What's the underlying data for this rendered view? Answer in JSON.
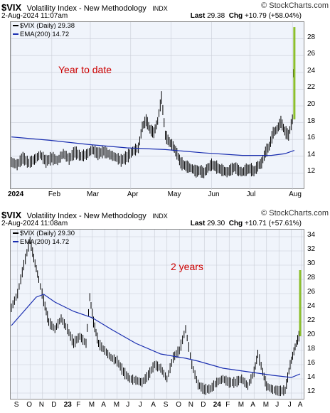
{
  "chart_data": [
    {
      "type": "bar",
      "subtype": "ohlc",
      "symbol": "$VIX",
      "title": "Volatility Index - New Methodology",
      "exchange": "INDX",
      "brand": "© StockCharts.com",
      "date": "2-Aug-2024 11:07am",
      "last_label": "Last",
      "last": "29.38",
      "chg_label": "Chg",
      "chg": "+10.79 (+58.04%)",
      "legend_price": "$VIX (Daily) 29.38",
      "legend_ema": "EMA(200) 14.72",
      "annotation": "Year to date",
      "ylim": [
        10,
        30
      ],
      "yticks": [
        12,
        14,
        16,
        18,
        20,
        22,
        24,
        26,
        28
      ],
      "xlim": [
        0,
        150
      ],
      "xticks": [
        {
          "label": "2024",
          "x": 0,
          "bold": true
        },
        {
          "label": "Feb",
          "x": 21
        },
        {
          "label": "Mar",
          "x": 41
        },
        {
          "label": "Apr",
          "x": 62
        },
        {
          "label": "May",
          "x": 83
        },
        {
          "label": "Jun",
          "x": 104
        },
        {
          "label": "Jul",
          "x": 124
        },
        {
          "label": "Aug",
          "x": 146
        }
      ],
      "price": [
        [
          0,
          13.3
        ],
        [
          3,
          13.0
        ],
        [
          6,
          13.8
        ],
        [
          9,
          13.2
        ],
        [
          12,
          13.6
        ],
        [
          15,
          14.2
        ],
        [
          18,
          13.4
        ],
        [
          21,
          13.8
        ],
        [
          24,
          13.5
        ],
        [
          27,
          14.3
        ],
        [
          30,
          13.7
        ],
        [
          33,
          14.5
        ],
        [
          36,
          14.0
        ],
        [
          39,
          14.2
        ],
        [
          42,
          14.8
        ],
        [
          45,
          14.3
        ],
        [
          48,
          14.6
        ],
        [
          51,
          14.2
        ],
        [
          54,
          13.9
        ],
        [
          57,
          13.5
        ],
        [
          60,
          13.9
        ],
        [
          63,
          14.6
        ],
        [
          66,
          15.0
        ],
        [
          68,
          17.5
        ],
        [
          70,
          18.3
        ],
        [
          72,
          17.2
        ],
        [
          74,
          16.8
        ],
        [
          76,
          18.2
        ],
        [
          78,
          21.0
        ],
        [
          80,
          16.5
        ],
        [
          82,
          15.7
        ],
        [
          84,
          15.2
        ],
        [
          86,
          14.3
        ],
        [
          88,
          13.2
        ],
        [
          90,
          12.9
        ],
        [
          92,
          12.7
        ],
        [
          94,
          12.5
        ],
        [
          96,
          12.2
        ],
        [
          98,
          12.3
        ],
        [
          100,
          12.0
        ],
        [
          102,
          12.6
        ],
        [
          104,
          13.0
        ],
        [
          106,
          12.8
        ],
        [
          108,
          12.5
        ],
        [
          110,
          12.3
        ],
        [
          112,
          12.1
        ],
        [
          114,
          12.4
        ],
        [
          116,
          12.7
        ],
        [
          118,
          12.3
        ],
        [
          120,
          12.1
        ],
        [
          122,
          12.4
        ],
        [
          124,
          12.5
        ],
        [
          126,
          12.2
        ],
        [
          128,
          12.8
        ],
        [
          130,
          13.2
        ],
        [
          132,
          14.5
        ],
        [
          134,
          15.2
        ],
        [
          136,
          16.8
        ],
        [
          138,
          17.2
        ],
        [
          140,
          18.1
        ],
        [
          142,
          17.0
        ],
        [
          144,
          16.5
        ],
        [
          146,
          18.4
        ],
        [
          147,
          29.4
        ]
      ],
      "ema": [
        [
          0,
          16.3
        ],
        [
          20,
          15.9
        ],
        [
          40,
          15.4
        ],
        [
          60,
          15.0
        ],
        [
          80,
          14.8
        ],
        [
          100,
          14.4
        ],
        [
          120,
          14.1
        ],
        [
          135,
          14.1
        ],
        [
          142,
          14.3
        ],
        [
          147,
          14.7
        ]
      ]
    },
    {
      "type": "bar",
      "subtype": "ohlc",
      "symbol": "$VIX",
      "title": "Volatility Index - New Methodology",
      "exchange": "INDX",
      "brand": "© StockCharts.com",
      "date": "2-Aug-2024 11:08am",
      "last_label": "Last",
      "last": "29.30",
      "chg_label": "Chg",
      "chg": "+10.71 (+57.61%)",
      "legend_price": "$VIX (Daily) 29.30",
      "legend_ema": "EMA(200) 14.72",
      "annotation": "2 years",
      "ylim": [
        11,
        35
      ],
      "yticks": [
        12,
        14,
        16,
        18,
        20,
        22,
        24,
        26,
        28,
        30,
        32,
        34
      ],
      "xlim": [
        0,
        23.2
      ],
      "xticks": [
        {
          "label": "S",
          "x": 0.5
        },
        {
          "label": "O",
          "x": 1.5
        },
        {
          "label": "N",
          "x": 2.5
        },
        {
          "label": "D",
          "x": 3.5
        },
        {
          "label": "23",
          "x": 4.5,
          "bold": true
        },
        {
          "label": "F",
          "x": 5.5
        },
        {
          "label": "M",
          "x": 6.5
        },
        {
          "label": "A",
          "x": 7.5
        },
        {
          "label": "M",
          "x": 8.5
        },
        {
          "label": "J",
          "x": 9.5
        },
        {
          "label": "J",
          "x": 10.5
        },
        {
          "label": "A",
          "x": 11.5
        },
        {
          "label": "S",
          "x": 12.5
        },
        {
          "label": "O",
          "x": 13.5
        },
        {
          "label": "N",
          "x": 14.5
        },
        {
          "label": "D",
          "x": 15.5
        },
        {
          "label": "24",
          "x": 16.5,
          "bold": true
        },
        {
          "label": "F",
          "x": 17.5
        },
        {
          "label": "M",
          "x": 18.5
        },
        {
          "label": "A",
          "x": 19.5
        },
        {
          "label": "M",
          "x": 20.5
        },
        {
          "label": "J",
          "x": 21.5
        },
        {
          "label": "J",
          "x": 22.5
        },
        {
          "label": "A",
          "x": 23.3
        }
      ],
      "price": [
        [
          0,
          24
        ],
        [
          0.5,
          26
        ],
        [
          1.0,
          30
        ],
        [
          1.5,
          33.5
        ],
        [
          1.8,
          31
        ],
        [
          2.2,
          28
        ],
        [
          2.6,
          25
        ],
        [
          3.0,
          22
        ],
        [
          3.5,
          21
        ],
        [
          4.0,
          22.5
        ],
        [
          4.5,
          21
        ],
        [
          5.0,
          19
        ],
        [
          5.5,
          20
        ],
        [
          6.0,
          19
        ],
        [
          6.3,
          25.5
        ],
        [
          6.6,
          22
        ],
        [
          7.0,
          19
        ],
        [
          7.5,
          18
        ],
        [
          8.0,
          17
        ],
        [
          8.5,
          16.5
        ],
        [
          9.0,
          15
        ],
        [
          9.5,
          14
        ],
        [
          10.0,
          13.8
        ],
        [
          10.5,
          13.5
        ],
        [
          11.0,
          14.5
        ],
        [
          11.5,
          16
        ],
        [
          12.0,
          15.5
        ],
        [
          12.5,
          14
        ],
        [
          13.0,
          17
        ],
        [
          13.5,
          18
        ],
        [
          14.0,
          21
        ],
        [
          14.5,
          16
        ],
        [
          15.0,
          13.2
        ],
        [
          15.5,
          12.5
        ],
        [
          16.0,
          12.6
        ],
        [
          16.5,
          13.5
        ],
        [
          17.0,
          14.0
        ],
        [
          17.5,
          13.5
        ],
        [
          18.0,
          13.5
        ],
        [
          18.5,
          14
        ],
        [
          19.0,
          13
        ],
        [
          19.5,
          15
        ],
        [
          19.8,
          17.5
        ],
        [
          20.2,
          15
        ],
        [
          20.5,
          13
        ],
        [
          21.0,
          12.5
        ],
        [
          21.5,
          12.3
        ],
        [
          22.0,
          12.4
        ],
        [
          22.4,
          16
        ],
        [
          22.8,
          18.5
        ],
        [
          23.1,
          20
        ],
        [
          23.2,
          29.3
        ]
      ],
      "ema": [
        [
          0,
          21.5
        ],
        [
          1,
          23.5
        ],
        [
          2,
          25.5
        ],
        [
          2.6,
          25.9
        ],
        [
          3.5,
          24.8
        ],
        [
          5,
          23.5
        ],
        [
          6.5,
          22.6
        ],
        [
          8,
          21.0
        ],
        [
          10,
          19.0
        ],
        [
          12,
          17.5
        ],
        [
          14,
          16.9
        ],
        [
          15,
          16.5
        ],
        [
          17,
          15.5
        ],
        [
          19,
          15.0
        ],
        [
          21,
          14.5
        ],
        [
          22.5,
          14.2
        ],
        [
          23.2,
          14.7
        ]
      ]
    }
  ],
  "colors": {
    "plot_bg": "#f0f4fb",
    "price": "#000000",
    "ema": "#1a2eb0",
    "annotation": "#cc0000",
    "spike": "#8dbf2c",
    "grid": "#c8ccd6"
  }
}
